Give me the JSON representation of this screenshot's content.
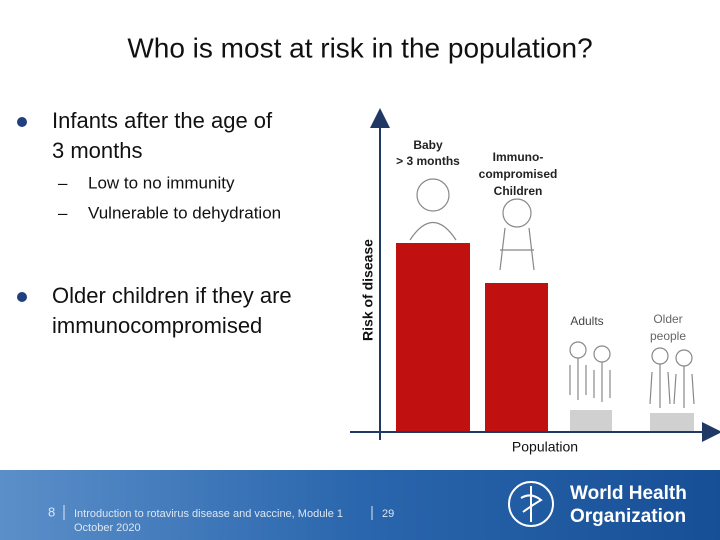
{
  "title": "Who is most at risk in the population?",
  "bullets": [
    {
      "lines": [
        "Infants after the age of",
        "3 months"
      ],
      "subitems": [
        "Low to no immunity",
        "Vulnerable to dehydration"
      ]
    },
    {
      "lines": [
        "Older children if they are",
        "immunocompromised"
      ]
    }
  ],
  "diagram": {
    "y_axis_label": "Risk of disease",
    "x_axis_label": "Population",
    "groups": [
      {
        "lines": [
          "Baby",
          "> 3 months"
        ]
      },
      {
        "lines": [
          "Immuno-",
          "compromised",
          "Children"
        ]
      },
      {
        "lines": [
          "Adults"
        ]
      },
      {
        "lines": [
          "Older",
          "people"
        ]
      }
    ]
  },
  "footer": {
    "page": "8",
    "lines": [
      "Introduction to rotavirus disease and vaccine, Module 1",
      "October 2020"
    ],
    "total": "29",
    "organization": [
      "World Health",
      "Organization"
    ]
  }
}
